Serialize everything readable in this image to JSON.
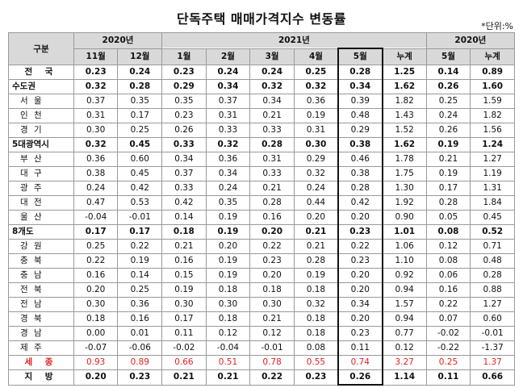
{
  "title": "단독주택 매매가격지수 변동률",
  "unit": "*단위:%",
  "header": {
    "category": "구분",
    "groups": [
      "2020년",
      "2021년",
      "2020년"
    ],
    "months": [
      "11월",
      "12월",
      "1월",
      "2월",
      "3월",
      "4월",
      "5월",
      "누계",
      "5월",
      "누계"
    ]
  },
  "rows": [
    {
      "label": "전 국",
      "style": "bold-center",
      "values": [
        "0.23",
        "0.24",
        "0.23",
        "0.24",
        "0.24",
        "0.25",
        "0.28",
        "1.25",
        "0.14",
        "0.89"
      ]
    },
    {
      "label": "수도권",
      "style": "bold-left",
      "values": [
        "0.32",
        "0.28",
        "0.29",
        "0.34",
        "0.32",
        "0.32",
        "0.34",
        "1.62",
        "0.26",
        "1.60"
      ]
    },
    {
      "label": "서 울",
      "style": "sub",
      "values": [
        "0.37",
        "0.35",
        "0.35",
        "0.37",
        "0.34",
        "0.36",
        "0.39",
        "1.82",
        "0.25",
        "1.59"
      ]
    },
    {
      "label": "인 천",
      "style": "sub",
      "values": [
        "0.31",
        "0.17",
        "0.23",
        "0.31",
        "0.21",
        "0.19",
        "0.48",
        "1.43",
        "0.24",
        "1.82"
      ]
    },
    {
      "label": "경 기",
      "style": "sub",
      "values": [
        "0.30",
        "0.25",
        "0.26",
        "0.33",
        "0.33",
        "0.31",
        "0.29",
        "1.52",
        "0.26",
        "1.56"
      ]
    },
    {
      "label": "5대광역시",
      "style": "bold-left",
      "values": [
        "0.32",
        "0.45",
        "0.33",
        "0.32",
        "0.28",
        "0.30",
        "0.38",
        "1.62",
        "0.19",
        "1.24"
      ]
    },
    {
      "label": "부 산",
      "style": "sub",
      "values": [
        "0.36",
        "0.60",
        "0.34",
        "0.36",
        "0.31",
        "0.29",
        "0.46",
        "1.78",
        "0.21",
        "1.27"
      ]
    },
    {
      "label": "대 구",
      "style": "sub",
      "values": [
        "0.38",
        "0.45",
        "0.37",
        "0.34",
        "0.33",
        "0.32",
        "0.38",
        "1.75",
        "0.19",
        "1.19"
      ]
    },
    {
      "label": "광 주",
      "style": "sub",
      "values": [
        "0.24",
        "0.42",
        "0.33",
        "0.24",
        "0.21",
        "0.24",
        "0.28",
        "1.30",
        "0.17",
        "1.31"
      ]
    },
    {
      "label": "대 전",
      "style": "sub",
      "values": [
        "0.47",
        "0.53",
        "0.42",
        "0.35",
        "0.28",
        "0.44",
        "0.42",
        "1.92",
        "0.28",
        "1.84"
      ]
    },
    {
      "label": "울 산",
      "style": "sub",
      "values": [
        "-0.04",
        "-0.01",
        "0.14",
        "0.19",
        "0.16",
        "0.20",
        "0.20",
        "0.90",
        "0.05",
        "0.45"
      ]
    },
    {
      "label": "8개도",
      "style": "bold-left",
      "values": [
        "0.17",
        "0.17",
        "0.18",
        "0.19",
        "0.20",
        "0.21",
        "0.23",
        "1.01",
        "0.08",
        "0.52"
      ]
    },
    {
      "label": "강 원",
      "style": "sub",
      "values": [
        "0.25",
        "0.22",
        "0.21",
        "0.20",
        "0.22",
        "0.21",
        "0.22",
        "1.06",
        "0.12",
        "0.71"
      ]
    },
    {
      "label": "충 북",
      "style": "sub",
      "values": [
        "0.22",
        "0.19",
        "0.16",
        "0.19",
        "0.23",
        "0.28",
        "0.23",
        "1.10",
        "0.08",
        "0.48"
      ]
    },
    {
      "label": "충 남",
      "style": "sub",
      "values": [
        "0.16",
        "0.14",
        "0.15",
        "0.19",
        "0.20",
        "0.19",
        "0.20",
        "0.92",
        "0.06",
        "0.28"
      ]
    },
    {
      "label": "전 북",
      "style": "sub",
      "values": [
        "0.20",
        "0.25",
        "0.19",
        "0.18",
        "0.18",
        "0.18",
        "0.20",
        "0.94",
        "0.16",
        "0.88"
      ]
    },
    {
      "label": "전 남",
      "style": "sub",
      "values": [
        "0.30",
        "0.36",
        "0.30",
        "0.30",
        "0.30",
        "0.32",
        "0.34",
        "1.57",
        "0.22",
        "1.27"
      ]
    },
    {
      "label": "경 북",
      "style": "sub",
      "values": [
        "0.18",
        "0.16",
        "0.17",
        "0.18",
        "0.21",
        "0.18",
        "0.20",
        "0.94",
        "0.07",
        "0.60"
      ]
    },
    {
      "label": "경 남",
      "style": "sub",
      "values": [
        "0.00",
        "0.01",
        "0.11",
        "0.12",
        "0.12",
        "0.18",
        "0.23",
        "0.77",
        "-0.02",
        "-0.01"
      ]
    },
    {
      "label": "제 주",
      "style": "sub",
      "values": [
        "-0.07",
        "-0.06",
        "-0.02",
        "-0.04",
        "-0.01",
        "0.08",
        "0.11",
        "0.12",
        "-0.22",
        "-1.37"
      ]
    },
    {
      "label": "세 종",
      "style": "red",
      "values": [
        "0.93",
        "0.89",
        "0.66",
        "0.51",
        "0.78",
        "0.55",
        "0.74",
        "3.27",
        "0.25",
        "1.37"
      ]
    },
    {
      "label": "지 방",
      "style": "bold-center",
      "values": [
        "0.20",
        "0.23",
        "0.21",
        "0.21",
        "0.22",
        "0.23",
        "0.26",
        "1.14",
        "0.11",
        "0.66"
      ]
    }
  ]
}
